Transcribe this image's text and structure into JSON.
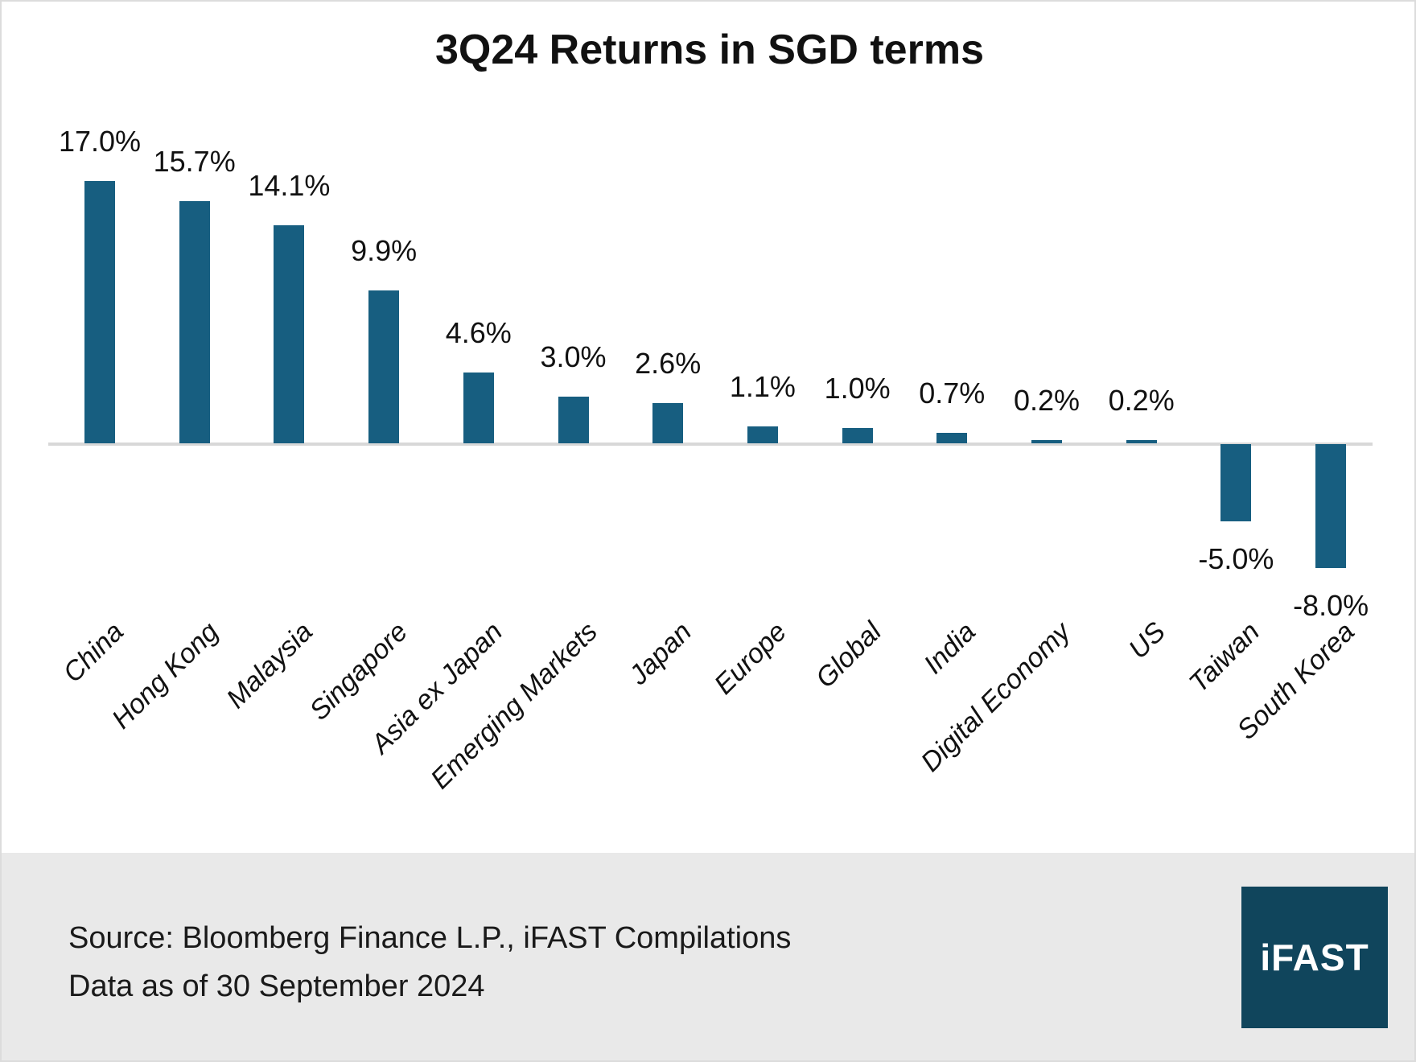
{
  "title": "3Q24 Returns in SGD terms",
  "chart_data": {
    "type": "bar",
    "title": "3Q24 Returns in SGD terms",
    "categories": [
      "China",
      "Hong Kong",
      "Malaysia",
      "Singapore",
      "Asia ex Japan",
      "Emerging Markets",
      "Japan",
      "Europe",
      "Global",
      "India",
      "Digital Economy",
      "US",
      "Taiwan",
      "South Korea"
    ],
    "values": [
      17.0,
      15.7,
      14.1,
      9.9,
      4.6,
      3.0,
      2.6,
      1.1,
      1.0,
      0.7,
      0.2,
      0.2,
      -5.0,
      -8.0
    ],
    "value_labels": [
      "17.0%",
      "15.7%",
      "14.1%",
      "9.9%",
      "4.6%",
      "3.0%",
      "2.6%",
      "1.1%",
      "1.0%",
      "0.7%",
      "0.2%",
      "0.2%",
      "-5.0%",
      "-8.0%"
    ],
    "xlabel": "",
    "ylabel": "",
    "ylim": [
      -8.0,
      17.0
    ],
    "grid": false,
    "legend": null,
    "bar_color": "#175e80",
    "axis_line_color": "#d8d8d8",
    "label_color": "#111111"
  },
  "footer": {
    "source_line": "Source: Bloomberg Finance L.P., iFAST Compilations",
    "date_line": "Data as of 30 September 2024",
    "logo_text": "iFAST",
    "logo_bg": "#10455c",
    "band_bg": "#e9e9e9"
  }
}
